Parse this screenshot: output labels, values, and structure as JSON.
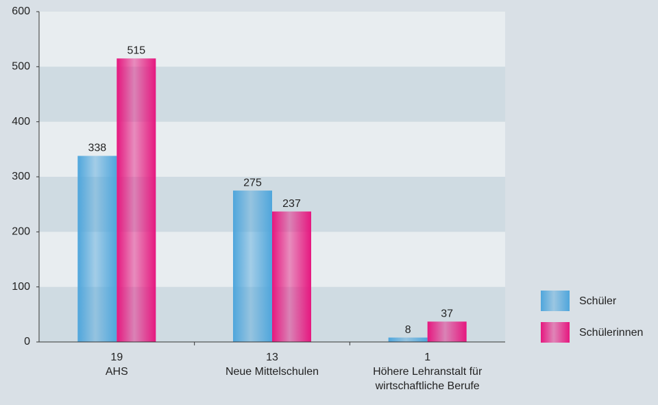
{
  "chart_data": {
    "type": "bar",
    "categories": [
      [
        "19",
        "AHS"
      ],
      [
        "13",
        "Neue Mittelschulen"
      ],
      [
        "1",
        "Höhere Lehranstalt für",
        "wirtschaftliche Berufe"
      ]
    ],
    "series": [
      {
        "name": "Schüler",
        "color": "#4fa6dc",
        "values": [
          338,
          275,
          8
        ]
      },
      {
        "name": "Schülerinnen",
        "color": "#e6177f",
        "values": [
          515,
          237,
          37
        ]
      }
    ],
    "ylim": [
      0,
      600
    ],
    "yticks": [
      0,
      100,
      200,
      300,
      400,
      500,
      600
    ],
    "bands": true,
    "legend": "right"
  }
}
